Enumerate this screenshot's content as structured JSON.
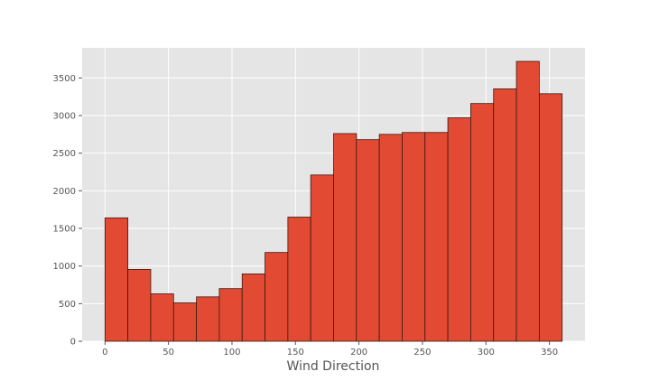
{
  "chart_data": {
    "type": "bar",
    "xlabel": "Wind Direction",
    "ylabel": "",
    "title": "",
    "xlim": [
      -18,
      378
    ],
    "ylim": [
      0,
      3900
    ],
    "grid": true,
    "colors": {
      "bar_fill": "#E24A33",
      "bar_edge": "#3a1a12",
      "plot_bg": "#E5E5E5",
      "grid": "#ffffff"
    },
    "bin_edges": [
      0,
      18,
      36,
      54,
      72,
      90,
      108,
      126,
      144,
      162,
      180,
      198,
      216,
      234,
      252,
      270,
      288,
      306,
      324,
      342,
      360
    ],
    "values": [
      1640,
      955,
      630,
      510,
      590,
      700,
      895,
      1180,
      1650,
      2210,
      2760,
      2680,
      2750,
      2775,
      2775,
      2970,
      3160,
      3355,
      3720,
      3290
    ],
    "x_ticks": [
      {
        "value": 0,
        "label": "0"
      },
      {
        "value": 50,
        "label": "50"
      },
      {
        "value": 100,
        "label": "100"
      },
      {
        "value": 150,
        "label": "150"
      },
      {
        "value": 200,
        "label": "200"
      },
      {
        "value": 250,
        "label": "250"
      },
      {
        "value": 300,
        "label": "300"
      },
      {
        "value": 350,
        "label": "350"
      }
    ],
    "y_ticks": [
      {
        "value": 0,
        "label": "0"
      },
      {
        "value": 500,
        "label": "500"
      },
      {
        "value": 1000,
        "label": "1000"
      },
      {
        "value": 1500,
        "label": "1500"
      },
      {
        "value": 2000,
        "label": "2000"
      },
      {
        "value": 2500,
        "label": "2500"
      },
      {
        "value": 3000,
        "label": "3000"
      },
      {
        "value": 3500,
        "label": "3500"
      }
    ]
  }
}
